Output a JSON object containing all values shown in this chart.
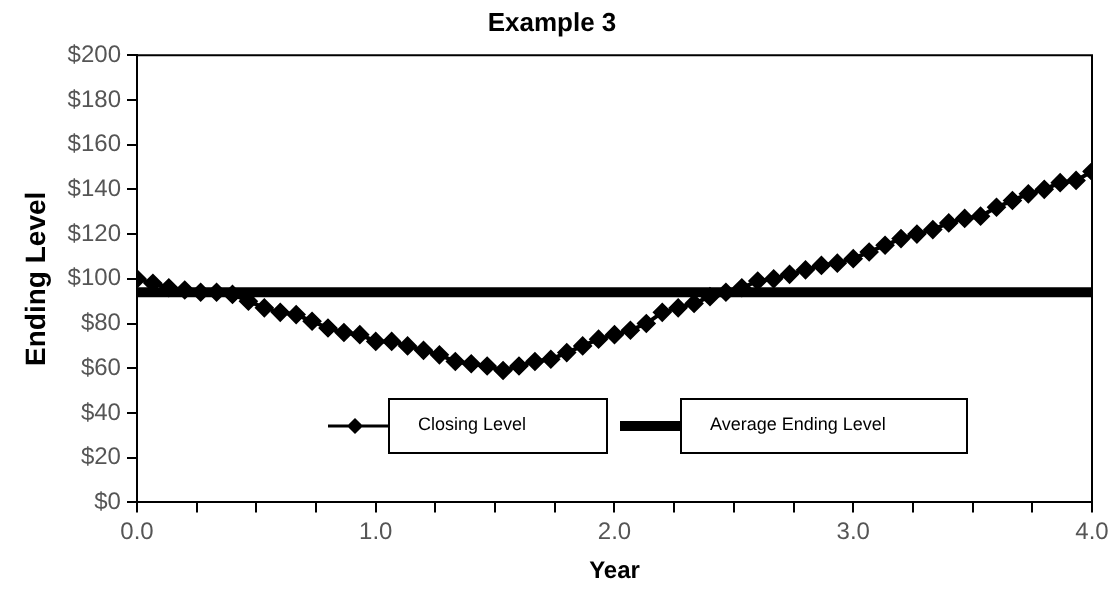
{
  "chart_data": {
    "type": "line",
    "title": "Example 3",
    "xlabel": "Year",
    "ylabel": "Ending Level",
    "x": [
      0,
      0.0667,
      0.1333,
      0.2,
      0.2667,
      0.3333,
      0.4,
      0.4667,
      0.5333,
      0.6,
      0.6667,
      0.7333,
      0.8,
      0.8667,
      0.9333,
      1,
      1.0667,
      1.1333,
      1.2,
      1.2667,
      1.3333,
      1.4,
      1.4667,
      1.5333,
      1.6,
      1.6667,
      1.7333,
      1.8,
      1.8667,
      1.9333,
      2,
      2.0667,
      2.1333,
      2.2,
      2.2667,
      2.3333,
      2.4,
      2.4667,
      2.5333,
      2.6,
      2.6667,
      2.7333,
      2.8,
      2.8667,
      2.9333,
      3,
      3.0667,
      3.1333,
      3.2,
      3.2667,
      3.3333,
      3.4,
      3.4667,
      3.5333,
      3.6,
      3.6667,
      3.7333,
      3.8,
      3.8667,
      3.9333,
      4
    ],
    "series": [
      {
        "name": "Closing Level",
        "color": "#000000",
        "marker": "diamond",
        "values": [
          100,
          98,
          96,
          95,
          94,
          94,
          93,
          90,
          87,
          85,
          84,
          81,
          78,
          76,
          75,
          72,
          72,
          70,
          68,
          66,
          63,
          62,
          61,
          59,
          61,
          63,
          64,
          67,
          70,
          73,
          75,
          77,
          80,
          85,
          87,
          89,
          92,
          94,
          96,
          99,
          100,
          102,
          104,
          106,
          107,
          109,
          112,
          115,
          118,
          120,
          122,
          125,
          127,
          128,
          132,
          135,
          138,
          140,
          143,
          144,
          148
        ]
      },
      {
        "name": "Average Ending Level",
        "color": "#000000",
        "marker": "none",
        "x": [
          0,
          4
        ],
        "values": [
          94,
          94
        ]
      }
    ],
    "xlim": [
      0,
      4
    ],
    "xticks": [
      {
        "value": 0,
        "label": "0.0"
      },
      {
        "value": 0.25,
        "label": null
      },
      {
        "value": 0.5,
        "label": null
      },
      {
        "value": 0.75,
        "label": null
      },
      {
        "value": 1,
        "label": "1.0"
      },
      {
        "value": 1.25,
        "label": null
      },
      {
        "value": 1.5,
        "label": null
      },
      {
        "value": 1.75,
        "label": null
      },
      {
        "value": 2,
        "label": "2.0"
      },
      {
        "value": 2.25,
        "label": null
      },
      {
        "value": 2.5,
        "label": null
      },
      {
        "value": 2.75,
        "label": null
      },
      {
        "value": 3,
        "label": "3.0"
      },
      {
        "value": 3.25,
        "label": null
      },
      {
        "value": 3.5,
        "label": null
      },
      {
        "value": 3.75,
        "label": null
      },
      {
        "value": 4,
        "label": "4.0"
      }
    ],
    "ylim": [
      0,
      200
    ],
    "yticks": [
      {
        "value": 0,
        "label": "$0"
      },
      {
        "value": 20,
        "label": "$20"
      },
      {
        "value": 40,
        "label": "$40"
      },
      {
        "value": 60,
        "label": "$60"
      },
      {
        "value": 80,
        "label": "$80"
      },
      {
        "value": 100,
        "label": "$100"
      },
      {
        "value": 120,
        "label": "$120"
      },
      {
        "value": 140,
        "label": "$140"
      },
      {
        "value": 160,
        "label": "$160"
      },
      {
        "value": 180,
        "label": "$180"
      },
      {
        "value": 200,
        "label": "$200"
      }
    ],
    "grid": false,
    "legend": "bottom"
  }
}
